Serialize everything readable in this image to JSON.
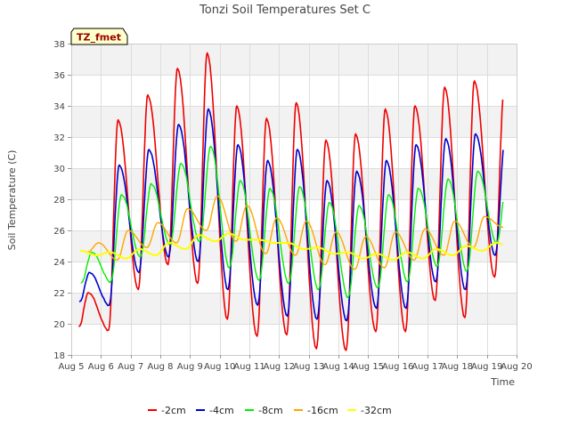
{
  "chart_data": {
    "type": "line",
    "title": "Tonzi Soil Temperatures Set C",
    "xlabel": "Time",
    "ylabel": "Soil Temperature (C)",
    "badge": "TZ_fmet",
    "xlim": [
      5,
      20
    ],
    "ylim": [
      18,
      38
    ],
    "x_ticks": [
      5,
      6,
      7,
      8,
      9,
      10,
      11,
      12,
      13,
      14,
      15,
      16,
      17,
      18,
      19,
      20
    ],
    "x_tick_labels": [
      "Aug 5",
      "Aug 6",
      "Aug 7",
      "Aug 8",
      "Aug 9",
      "Aug 10",
      "Aug 11",
      "Aug 12",
      "Aug 13",
      "Aug 14",
      "Aug 15",
      "Aug 16",
      "Aug 17",
      "Aug 18",
      "Aug 19",
      "Aug 20"
    ],
    "y_ticks": [
      18,
      20,
      22,
      24,
      26,
      28,
      30,
      32,
      34,
      36,
      38
    ],
    "y_tick_labels": [
      "18",
      "20",
      "22",
      "24",
      "26",
      "28",
      "30",
      "32",
      "34",
      "36",
      "38"
    ],
    "grid": true,
    "legend_position": "bottom",
    "series": [
      {
        "name": "-2cm",
        "color": "#ee0000",
        "width": 1.6,
        "days": [
          5,
          6,
          7,
          8,
          9,
          10,
          11,
          12,
          13,
          14,
          15,
          16,
          17,
          18,
          19
        ],
        "max": [
          22.0,
          33.1,
          34.7,
          36.4,
          37.4,
          34.0,
          33.2,
          34.2,
          31.8,
          32.2,
          33.8,
          34.0,
          35.2,
          35.6,
          35.0
        ],
        "min": [
          19.8,
          19.6,
          22.2,
          23.8,
          22.6,
          20.3,
          19.2,
          19.3,
          18.4,
          18.3,
          19.5,
          19.5,
          21.5,
          20.4,
          23.0
        ],
        "peak_phase": 0.58,
        "min_phase": 0.26
      },
      {
        "name": "-4cm",
        "color": "#0000cc",
        "width": 1.6,
        "days": [
          5,
          6,
          7,
          8,
          9,
          10,
          11,
          12,
          13,
          14,
          15,
          16,
          17,
          18,
          19
        ],
        "max": [
          23.3,
          30.2,
          31.2,
          32.8,
          33.8,
          31.5,
          30.5,
          31.2,
          29.2,
          29.8,
          30.5,
          31.5,
          31.9,
          32.2,
          32.0
        ],
        "min": [
          21.4,
          21.2,
          23.3,
          24.3,
          24.0,
          22.2,
          21.2,
          20.5,
          20.3,
          20.2,
          21.0,
          21.0,
          22.7,
          22.2,
          24.4
        ],
        "peak_phase": 0.62,
        "min_phase": 0.28
      },
      {
        "name": "-8cm",
        "color": "#00ee00",
        "width": 1.4,
        "days": [
          5,
          6,
          7,
          8,
          9,
          10,
          11,
          12,
          13,
          14,
          15,
          16,
          17,
          18,
          19
        ],
        "max": [
          24.6,
          28.3,
          29.0,
          30.3,
          31.4,
          29.2,
          28.7,
          28.8,
          27.8,
          27.6,
          28.3,
          28.7,
          29.3,
          29.8,
          29.5
        ],
        "min": [
          22.6,
          22.7,
          24.3,
          25.1,
          25.3,
          23.6,
          22.8,
          22.6,
          22.2,
          21.7,
          22.3,
          22.7,
          23.7,
          23.4,
          25.2
        ],
        "peak_phase": 0.7,
        "min_phase": 0.33
      },
      {
        "name": "-16cm",
        "color": "#ffa500",
        "width": 1.4,
        "days": [
          5,
          6,
          7,
          8,
          9,
          10,
          11,
          12,
          13,
          14,
          15,
          16,
          17,
          18,
          19
        ],
        "max": [
          25.2,
          26.0,
          26.5,
          27.4,
          28.2,
          27.6,
          26.8,
          26.6,
          25.9,
          25.6,
          25.9,
          26.1,
          26.6,
          26.9,
          26.9
        ],
        "min": [
          24.6,
          24.1,
          24.9,
          25.2,
          26.0,
          25.3,
          24.5,
          24.4,
          23.8,
          23.5,
          23.6,
          24.1,
          24.4,
          24.9,
          26.2
        ],
        "peak_phase": 0.92,
        "min_phase": 0.55
      },
      {
        "name": "-32cm",
        "color": "#ffff00",
        "width": 2.0,
        "days": [
          5,
          6,
          7,
          8,
          9,
          10,
          11,
          12,
          13,
          14,
          15,
          16,
          17,
          18,
          19
        ],
        "max": [
          24.7,
          24.6,
          24.8,
          25.2,
          25.7,
          25.8,
          25.4,
          25.2,
          24.9,
          24.6,
          24.5,
          24.6,
          24.8,
          25.0,
          25.2
        ],
        "min": [
          24.4,
          24.2,
          24.4,
          24.8,
          25.3,
          25.4,
          25.2,
          24.8,
          24.5,
          24.2,
          24.1,
          24.2,
          24.4,
          24.7,
          24.9
        ],
        "peak_phase": 0.3,
        "min_phase": 0.85
      }
    ]
  }
}
